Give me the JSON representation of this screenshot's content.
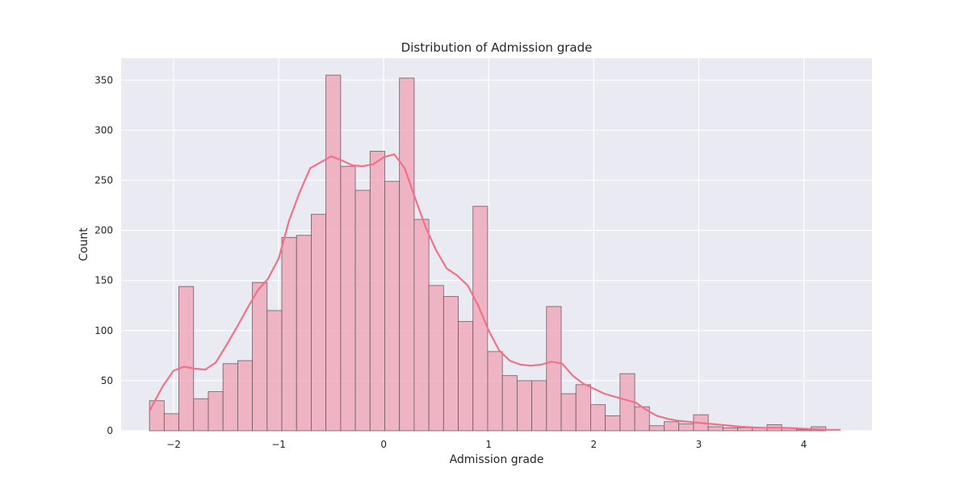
{
  "chart_data": {
    "type": "bar",
    "title": "Distribution of Admission grade",
    "xlabel": "Admission grade",
    "ylabel": "Count",
    "xlim": [
      -2.5,
      4.65
    ],
    "ylim": [
      0,
      372
    ],
    "x_ticks": [
      -2,
      -1,
      0,
      1,
      2,
      3,
      4
    ],
    "x_tick_labels": [
      "−2",
      "−1",
      "0",
      "1",
      "2",
      "3",
      "4"
    ],
    "y_ticks": [
      0,
      50,
      100,
      150,
      200,
      250,
      300,
      350
    ],
    "y_tick_labels": [
      "0",
      "50",
      "100",
      "150",
      "200",
      "250",
      "300",
      "350"
    ],
    "grid": true,
    "bin_start": -2.23,
    "bin_width": 0.14,
    "counts": [
      30,
      17,
      144,
      32,
      39,
      67,
      70,
      148,
      120,
      193,
      195,
      216,
      355,
      264,
      240,
      279,
      249,
      352,
      211,
      145,
      134,
      109,
      224,
      79,
      55,
      50,
      50,
      124,
      37,
      46,
      26,
      15,
      57,
      24,
      5,
      9,
      7,
      16,
      4,
      3,
      3,
      3,
      6,
      3,
      1,
      4
    ],
    "kde": {
      "x": [
        -2.23,
        -2.1,
        -2.0,
        -1.9,
        -1.8,
        -1.7,
        -1.6,
        -1.5,
        -1.4,
        -1.3,
        -1.2,
        -1.1,
        -1.0,
        -0.9,
        -0.8,
        -0.7,
        -0.6,
        -0.5,
        -0.4,
        -0.3,
        -0.2,
        -0.1,
        0.0,
        0.1,
        0.2,
        0.3,
        0.4,
        0.5,
        0.6,
        0.7,
        0.8,
        0.9,
        1.0,
        1.1,
        1.2,
        1.3,
        1.4,
        1.5,
        1.6,
        1.7,
        1.8,
        1.9,
        2.0,
        2.1,
        2.2,
        2.3,
        2.4,
        2.5,
        2.6,
        2.7,
        2.8,
        2.9,
        3.0,
        3.2,
        3.4,
        3.6,
        3.8,
        4.0,
        4.2,
        4.35
      ],
      "y": [
        20,
        45,
        60,
        64,
        62,
        61,
        68,
        85,
        103,
        122,
        140,
        152,
        172,
        210,
        238,
        262,
        268,
        274,
        270,
        265,
        264,
        266,
        273,
        276,
        262,
        232,
        203,
        180,
        162,
        155,
        145,
        125,
        100,
        80,
        70,
        66,
        65,
        66,
        69,
        67,
        55,
        47,
        42,
        37,
        34,
        31,
        28,
        21,
        15,
        12,
        10,
        9,
        8,
        6,
        4,
        3,
        3,
        2,
        1,
        1
      ]
    },
    "colors": {
      "bar_fill": "#f0a6b8",
      "bar_edge": "#6e5a5f",
      "kde_line": "#f27088",
      "plot_bg": "#eaeaf2",
      "grid": "#ffffff"
    }
  }
}
